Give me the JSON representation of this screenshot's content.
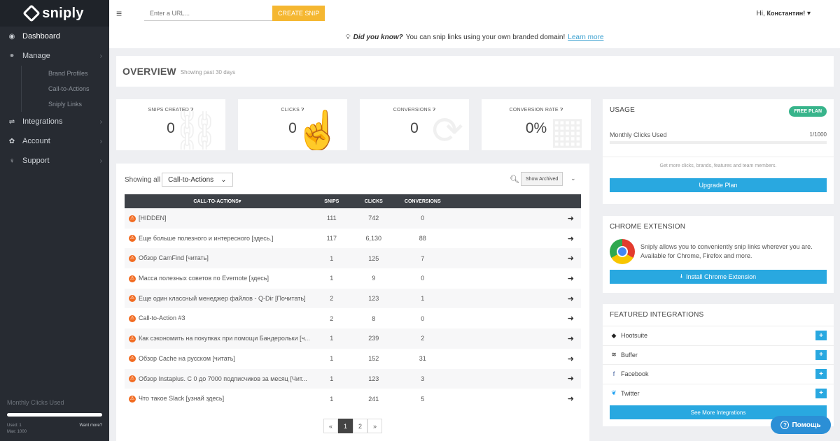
{
  "app": {
    "brand": "sniply"
  },
  "sidebar": {
    "items": [
      {
        "label": "Dashboard",
        "icon": "dashboard-icon",
        "glyph": "◉"
      },
      {
        "label": "Manage",
        "icon": "link-icon",
        "glyph": "⚭"
      },
      {
        "label": "Integrations",
        "icon": "integrations-icon",
        "glyph": "⇌"
      },
      {
        "label": "Account",
        "icon": "gear-icon",
        "glyph": "✿"
      },
      {
        "label": "Support",
        "icon": "lightbulb-icon",
        "glyph": "♀"
      }
    ],
    "sub_items": [
      "Brand Profiles",
      "Call-to-Actions",
      "Sniply Links"
    ],
    "bottom": {
      "label": "Monthly Clicks Used",
      "used": "Used: 1",
      "max": "Max: 1000",
      "want_more": "Want more?"
    }
  },
  "topbar": {
    "url_placeholder": "Enter a URL...",
    "create_label": "CREATE SNIP",
    "greeting": "Hi,",
    "user_name": "Константин!",
    "menu_glyph": "≡",
    "caret_glyph": "▾"
  },
  "tip": {
    "prefix": "Did you know?",
    "text": "You can snip links using your own branded domain!",
    "link": "Learn more"
  },
  "overview": {
    "title": "OVERVIEW",
    "subtitle": "Showing past 30 days"
  },
  "stats": [
    {
      "label": "SNIPS CREATED",
      "value": "0",
      "bg_glyph": "⛓"
    },
    {
      "label": "CLICKS",
      "value": "0",
      "bg_glyph": "☝"
    },
    {
      "label": "CONVERSIONS",
      "value": "0",
      "bg_glyph": "⟳"
    },
    {
      "label": "CONVERSION RATE",
      "value": "0%",
      "bg_glyph": "▦"
    }
  ],
  "table": {
    "showing_label": "Showing all",
    "filter_value": "Call-to-Actions",
    "archived_label": "Show Archived",
    "headers": [
      "CALL-TO-ACTIONS",
      "SNIPS",
      "CLICKS",
      "CONVERSIONS"
    ],
    "sort_glyph": "▾",
    "rows": [
      {
        "name": "[HIDDEN]",
        "snips": "111",
        "clicks": "742",
        "conversions": "0"
      },
      {
        "name": "Еще больше полезного и интересного [здесь.]",
        "snips": "117",
        "clicks": "6,130",
        "conversions": "88"
      },
      {
        "name": "Обзор CamFind [читать]",
        "snips": "1",
        "clicks": "125",
        "conversions": "7"
      },
      {
        "name": "Масса полезных советов по Evernote [здесь]",
        "snips": "1",
        "clicks": "9",
        "conversions": "0"
      },
      {
        "name": "Еще один классный менеджер файлов - Q-Dir [Почитать]",
        "snips": "2",
        "clicks": "123",
        "conversions": "1"
      },
      {
        "name": "Call-to-Action #3",
        "snips": "2",
        "clicks": "8",
        "conversions": "0"
      },
      {
        "name": "Как сэкономить на покупках при помощи Бандерольки [ч...",
        "snips": "1",
        "clicks": "239",
        "conversions": "2"
      },
      {
        "name": "Обзор Cache на русском [читать]",
        "snips": "1",
        "clicks": "152",
        "conversions": "31"
      },
      {
        "name": "Обзор Instaplus. С 0 до 7000 подписчиков за месяц [Чит...",
        "snips": "1",
        "clicks": "123",
        "conversions": "3"
      },
      {
        "name": "Что такое Slack [узнай здесь]",
        "snips": "1",
        "clicks": "241",
        "conversions": "5"
      }
    ],
    "pager": {
      "prev": "«",
      "pages": [
        "1",
        "2"
      ],
      "next": "»",
      "current": "1"
    }
  },
  "usage": {
    "title": "USAGE",
    "plan": "FREE PLAN",
    "clicks_label": "Monthly Clicks Used",
    "clicks_value": "1/1000",
    "note": "Get more clicks, brands, features and team members.",
    "upgrade_label": "Upgrade Plan"
  },
  "chrome_ext": {
    "title": "CHROME EXTENSION",
    "text": "Sniply allows you to conveniently snip links wherever you are. Available for Chrome, Firefox and more.",
    "button": "Install Chrome Extension"
  },
  "integrations": {
    "title": "FEATURED INTEGRATIONS",
    "items": [
      {
        "name": "Hootsuite",
        "icon": "hootsuite-icon",
        "glyph": "◆",
        "color": "#222222"
      },
      {
        "name": "Buffer",
        "icon": "buffer-icon",
        "glyph": "≋",
        "color": "#222222"
      },
      {
        "name": "Facebook",
        "icon": "facebook-icon",
        "glyph": "f",
        "color": "#3b5998"
      },
      {
        "name": "Twitter",
        "icon": "twitter-icon",
        "glyph": "❦",
        "color": "#1da1f2"
      }
    ],
    "more": "See More Integrations",
    "plus_glyph": "+"
  },
  "help": {
    "label": "Помощь",
    "glyph": "?"
  },
  "colors": {
    "accent": "#29a8e0",
    "create": "#f5b731",
    "free_plan": "#38b48b",
    "sidebar": "#272b32",
    "badge": "#f26b21"
  }
}
